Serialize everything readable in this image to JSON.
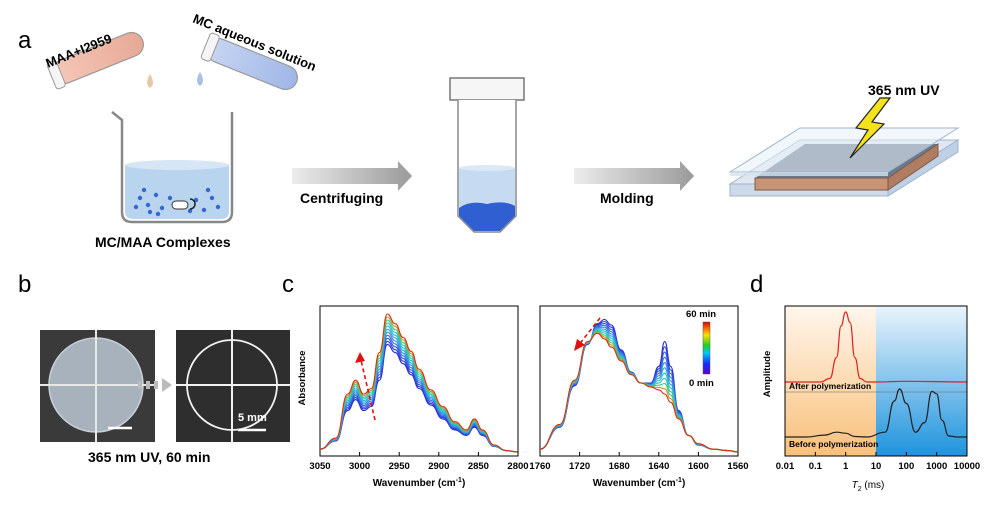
{
  "panel_a": {
    "letter": "a",
    "tube1_label": "MAA+I2959",
    "tube2_label": "MC aqueous solution",
    "beaker_caption": "MC/MAA Complexes",
    "arrow1_label": "Centrifuging",
    "arrow2_label": "Molding",
    "uv_label": "365 nm UV"
  },
  "panel_b": {
    "letter": "b",
    "scale_label": "5 mm",
    "caption": "365 nm UV, 60 min"
  },
  "panel_c": {
    "letter": "c",
    "ylabel": "Absorbance",
    "left_xlabel": "Wavenumber (cm",
    "right_xlabel": "Wavenumber (cm",
    "xlabel_sup": "-1",
    "xlabel_close": ")",
    "left_ticks": [
      "3050",
      "3000",
      "2950",
      "2900",
      "2850",
      "2800"
    ],
    "right_ticks": [
      "1760",
      "1720",
      "1680",
      "1640",
      "1600",
      "1560"
    ],
    "colorbar_top": "60 min",
    "colorbar_bottom": "0 min"
  },
  "panel_d": {
    "letter": "d",
    "ylabel": "Amplitude",
    "xlabel_italic": "T",
    "xlabel_sub": "2",
    "xlabel_unit": " (ms)",
    "ticks": [
      "0.01",
      "0.1",
      "1",
      "10",
      "100",
      "1000",
      "10000"
    ],
    "after_label": "After polymerization",
    "before_label": "Before polymerization"
  },
  "colors": {
    "bead": "#2f5fd0",
    "liquid": "#b9d4ee",
    "after_curve": "#e02020",
    "before_curve": "#222222",
    "arrow_gray": "#999999",
    "annot_arrow": "#e01010"
  },
  "chart_data": [
    {
      "type": "line",
      "title": "",
      "xlabel": "Wavenumber (cm-1)",
      "ylabel": "Absorbance",
      "xlim": [
        3050,
        2800
      ],
      "x": [
        3050,
        3030,
        3015,
        3005,
        2995,
        2985,
        2975,
        2965,
        2955,
        2945,
        2935,
        2925,
        2910,
        2895,
        2880,
        2865,
        2855,
        2845,
        2830,
        2815,
        2800
      ],
      "series": [
        {
          "name": "",
          "values": [
            0.02,
            0.08,
            0.3,
            0.38,
            0.3,
            0.33,
            0.52,
            0.78,
            0.72,
            0.64,
            0.56,
            0.46,
            0.34,
            0.24,
            0.16,
            0.12,
            0.18,
            0.12,
            0.04,
            0.01,
            0.0
          ]
        },
        {
          "name": "",
          "values": [
            0.02,
            0.1,
            0.42,
            0.52,
            0.42,
            0.46,
            0.72,
            1.0,
            0.93,
            0.83,
            0.73,
            0.6,
            0.45,
            0.33,
            0.22,
            0.16,
            0.24,
            0.16,
            0.05,
            0.01,
            0.0
          ]
        }
      ]
    },
    {
      "type": "line",
      "title": "",
      "xlabel": "Wavenumber (cm-1)",
      "ylabel": "",
      "xlim": [
        1760,
        1560
      ],
      "x": [
        1760,
        1740,
        1725,
        1712,
        1702,
        1695,
        1688,
        1678,
        1668,
        1658,
        1648,
        1640,
        1634,
        1628,
        1620,
        1610,
        1600,
        1585,
        1570,
        1560
      ],
      "series": [
        {
          "name": "",
          "values": [
            0.02,
            0.18,
            0.48,
            0.78,
            0.93,
            0.96,
            0.92,
            0.74,
            0.58,
            0.5,
            0.5,
            0.62,
            0.8,
            0.62,
            0.3,
            0.12,
            0.05,
            0.02,
            0.01,
            0.0
          ]
        },
        {
          "name": "",
          "values": [
            0.02,
            0.2,
            0.52,
            0.8,
            0.86,
            0.82,
            0.76,
            0.66,
            0.56,
            0.5,
            0.47,
            0.45,
            0.42,
            0.36,
            0.24,
            0.12,
            0.06,
            0.02,
            0.01,
            0.0
          ]
        }
      ],
      "colorbar": [
        "0 min",
        "60 min"
      ]
    },
    {
      "type": "line",
      "title": "",
      "xlabel": "T2 (ms)",
      "ylabel": "Amplitude",
      "xscale": "log",
      "xlim": [
        0.01,
        10000
      ],
      "series": [
        {
          "name": "After polymerization",
          "x": [
            0.15,
            0.3,
            0.5,
            0.7,
            1.0,
            1.4,
            2.0,
            3.0,
            5.0,
            10,
            100,
            10000
          ],
          "values": [
            0.0,
            0.05,
            0.35,
            0.8,
            1.0,
            0.85,
            0.35,
            0.05,
            0.0,
            0.0,
            0.01,
            0.0
          ]
        },
        {
          "name": "Before polymerization",
          "x": [
            0.05,
            0.2,
            0.5,
            1.0,
            2.0,
            5,
            20,
            40,
            60,
            100,
            200,
            400,
            700,
            1000,
            1500,
            2500,
            5000
          ],
          "values": [
            0.0,
            0.04,
            0.1,
            0.08,
            0.01,
            0.0,
            0.1,
            0.75,
            1.0,
            0.7,
            0.1,
            0.3,
            0.95,
            0.9,
            0.35,
            0.02,
            0.0
          ]
        }
      ]
    }
  ]
}
